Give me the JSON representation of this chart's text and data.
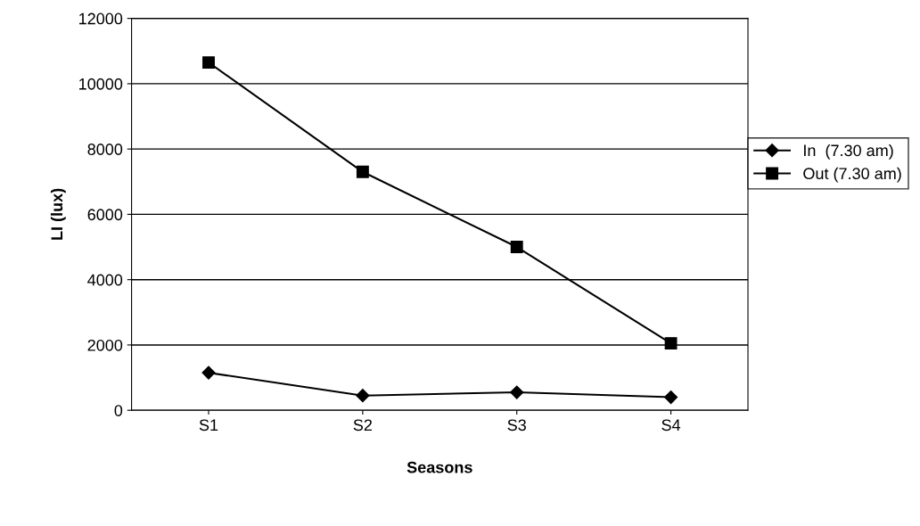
{
  "chart_data": {
    "type": "line",
    "xlabel": "Seasons",
    "ylabel": "LI (lux)",
    "categories": [
      "S1",
      "S2",
      "S3",
      "S4"
    ],
    "series": [
      {
        "name": "In  (7.30 am)",
        "color": "#000000",
        "marker": "diamond",
        "values": [
          1150,
          450,
          550,
          400
        ]
      },
      {
        "name": "Out (7.30 am)",
        "color": "#000000",
        "marker": "square",
        "values": [
          10650,
          7300,
          5000,
          2050
        ]
      }
    ],
    "ylim": [
      0,
      12000
    ],
    "yticks": [
      0,
      2000,
      4000,
      6000,
      8000,
      10000,
      12000
    ],
    "grid": "y",
    "legend": "right",
    "line_style": "solid"
  }
}
